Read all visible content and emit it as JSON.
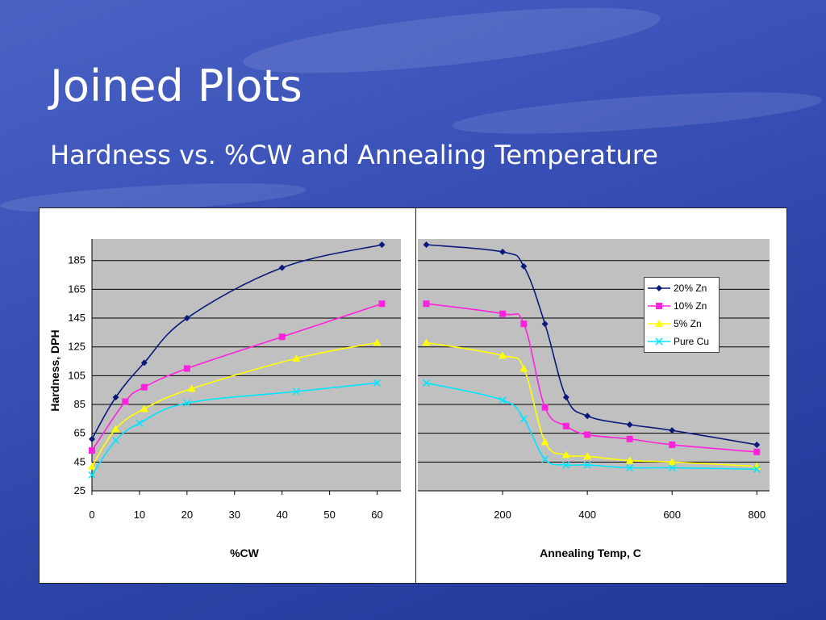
{
  "slide": {
    "title": "Joined Plots",
    "subtitle": "Hardness vs. %CW and Annealing Temperature"
  },
  "colors": {
    "zn20": "#0a1a7a",
    "zn10": "#ff22dd",
    "zn5": "#ffff00",
    "cu": "#00e5ff",
    "plot_bg": "#c0c0c0",
    "grid": "#000000"
  },
  "chart_data": [
    {
      "type": "line",
      "xlabel": "%CW",
      "ylabel": "Hardness, DPH",
      "xlim": [
        0,
        65
      ],
      "ylim": [
        25,
        200
      ],
      "xticks": [
        "0",
        "10",
        "20",
        "30",
        "40",
        "50",
        "60"
      ],
      "yticks": [
        "25",
        "45",
        "65",
        "85",
        "105",
        "125",
        "145",
        "165",
        "185"
      ],
      "grid": true,
      "series": [
        {
          "name": "20% Zn",
          "color_key": "zn20",
          "marker": "diamond",
          "x": [
            0,
            5,
            11,
            20,
            40,
            61
          ],
          "y": [
            61,
            90,
            114,
            145,
            180,
            196
          ]
        },
        {
          "name": "10% Zn",
          "color_key": "zn10",
          "marker": "square",
          "x": [
            0,
            7,
            11,
            20,
            40,
            61
          ],
          "y": [
            53,
            87,
            97,
            110,
            132,
            155
          ]
        },
        {
          "name": "5% Zn",
          "color_key": "zn5",
          "marker": "triangle",
          "x": [
            0,
            5,
            11,
            21,
            43,
            60
          ],
          "y": [
            42,
            68,
            82,
            96,
            117,
            128
          ]
        },
        {
          "name": "Pure Cu",
          "color_key": "cu",
          "marker": "x",
          "x": [
            0,
            5,
            10,
            20,
            43,
            60
          ],
          "y": [
            36,
            60,
            72,
            86,
            94,
            100
          ]
        }
      ]
    },
    {
      "type": "line",
      "xlabel": "Annealing Temp, C",
      "ylabel": "",
      "xlim": [
        0,
        830
      ],
      "ylim": [
        25,
        200
      ],
      "xticks": [
        "200",
        "400",
        "600",
        "800"
      ],
      "grid": true,
      "legend": "top-right",
      "series": [
        {
          "name": "20% Zn",
          "color_key": "zn20",
          "marker": "diamond",
          "x": [
            20,
            200,
            250,
            300,
            350,
            400,
            500,
            600,
            800
          ],
          "y": [
            196,
            191,
            181,
            141,
            90,
            77,
            71,
            67,
            57
          ]
        },
        {
          "name": "10% Zn",
          "color_key": "zn10",
          "marker": "square",
          "x": [
            20,
            200,
            250,
            300,
            350,
            400,
            500,
            600,
            800
          ],
          "y": [
            155,
            148,
            141,
            83,
            70,
            64,
            61,
            57,
            52
          ]
        },
        {
          "name": "5% Zn",
          "color_key": "zn5",
          "marker": "triangle",
          "x": [
            20,
            200,
            250,
            300,
            350,
            400,
            500,
            600,
            800
          ],
          "y": [
            128,
            119,
            110,
            59,
            50,
            49,
            46,
            45,
            42
          ]
        },
        {
          "name": "Pure Cu",
          "color_key": "cu",
          "marker": "x",
          "x": [
            20,
            200,
            250,
            300,
            350,
            400,
            500,
            600,
            800
          ],
          "y": [
            100,
            88,
            75,
            47,
            43,
            43,
            41,
            41,
            40
          ]
        }
      ]
    }
  ]
}
